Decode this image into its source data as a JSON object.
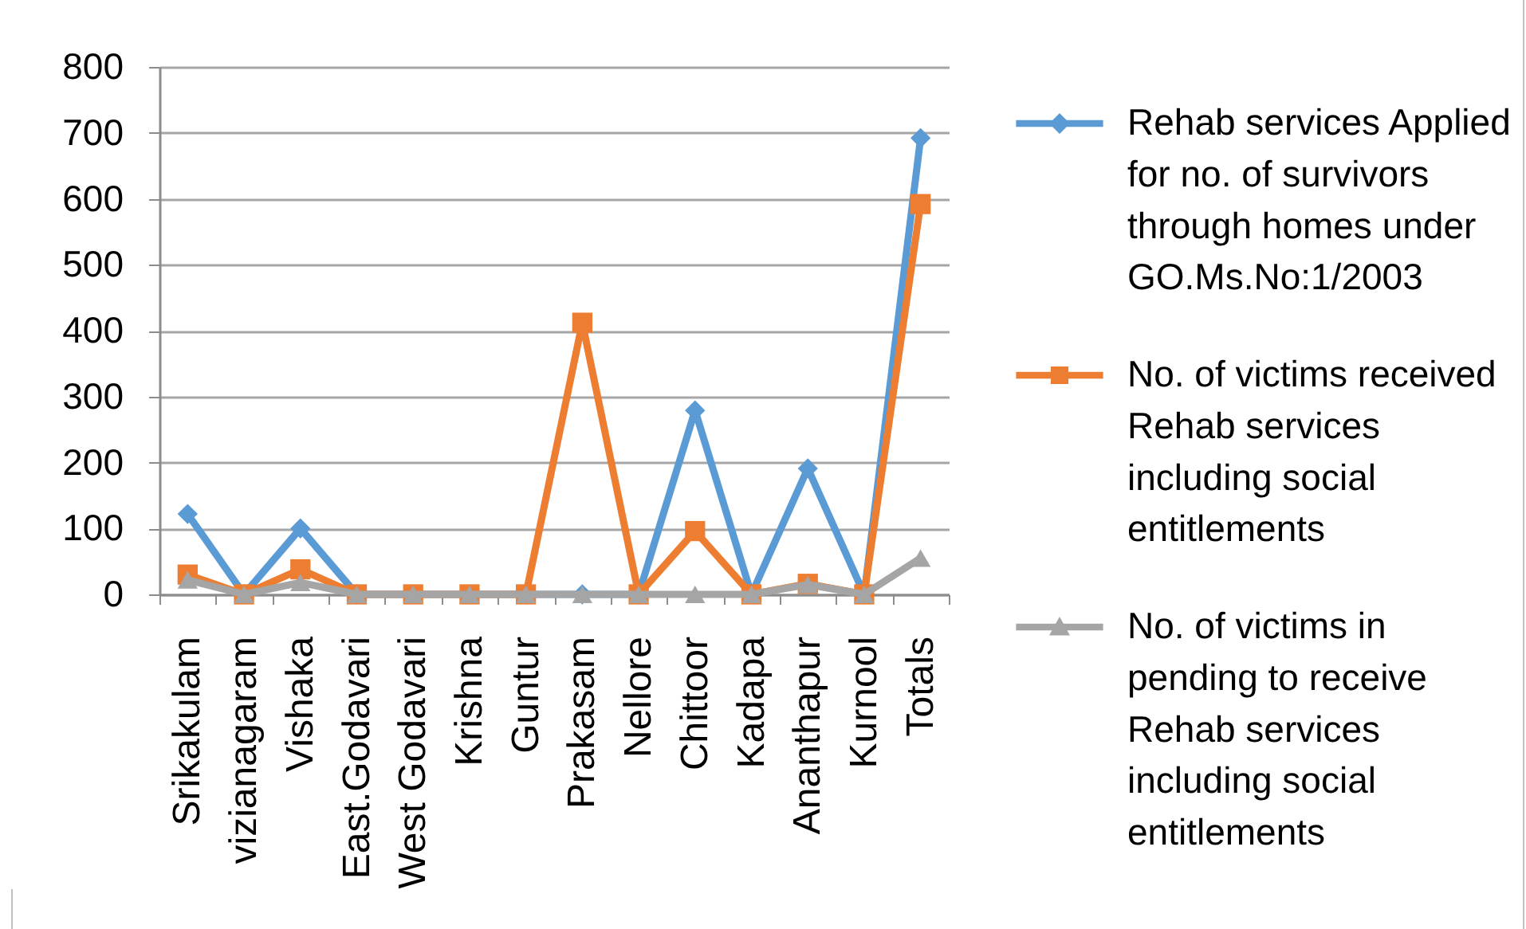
{
  "chart_data": {
    "type": "line",
    "categories": [
      "Srikakulam",
      "vizianagaram",
      "Vishaka",
      "East.Godavari",
      "West Godavari",
      "Krishna",
      "Guntur",
      "Prakasam",
      "Nellore",
      "Chittoor",
      "Kadapa",
      "Ananthapur",
      "Kurnool",
      "Totals"
    ],
    "series": [
      {
        "name": "Rehab services Applied for no. of survivors through homes under GO.Ms.No:1/2003",
        "color": "#5b9bd5",
        "marker": "diamond",
        "values": [
          122,
          0,
          100,
          0,
          0,
          0,
          0,
          0,
          0,
          279,
          0,
          191,
          0,
          692
        ]
      },
      {
        "name": "No. of victims received Rehab services including social entitlements",
        "color": "#ed7d31",
        "marker": "square",
        "values": [
          30,
          0,
          38,
          0,
          0,
          0,
          0,
          412,
          0,
          96,
          0,
          16,
          0,
          592
        ]
      },
      {
        "name": "No. of victims in pending to receive Rehab services including social entitlements",
        "color": "#a5a5a5",
        "marker": "triangle",
        "values": [
          22,
          0,
          18,
          0,
          0,
          0,
          0,
          0,
          0,
          0,
          0,
          15,
          0,
          55
        ]
      }
    ],
    "ylim": [
      0,
      800
    ],
    "yticks": [
      0,
      100,
      200,
      300,
      400,
      500,
      600,
      700,
      800
    ],
    "grid": "y",
    "legend": "right"
  }
}
